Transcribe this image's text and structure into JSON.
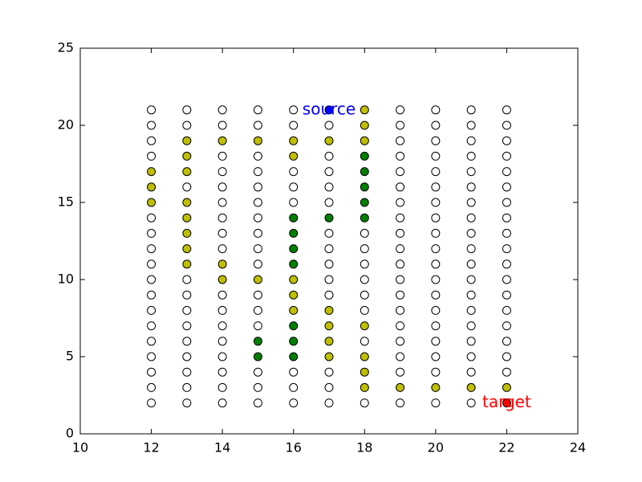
{
  "chart_data": {
    "type": "scatter",
    "xlim": [
      10,
      24
    ],
    "xticks": [
      10,
      12,
      14,
      16,
      18,
      20,
      22,
      24
    ],
    "ylim": [
      0,
      25
    ],
    "yticks": [
      0,
      5,
      10,
      15,
      20,
      25
    ],
    "series": [
      {
        "color": "#ffffff",
        "x": [
          12,
          13,
          14,
          15,
          16,
          19,
          20,
          21,
          22,
          12,
          13,
          14,
          15,
          16,
          17,
          19,
          20,
          21,
          22,
          12,
          19,
          20,
          21,
          22,
          12,
          14,
          15,
          17,
          19,
          20,
          21,
          22,
          14,
          15,
          16,
          17,
          19,
          20,
          21,
          22,
          13,
          14,
          15,
          16,
          17,
          19,
          20,
          21,
          22,
          14,
          15,
          16,
          17,
          19,
          20,
          21,
          22,
          12,
          14,
          15,
          19,
          20,
          21,
          22,
          12,
          14,
          15,
          17,
          18,
          19,
          20,
          21,
          22,
          12,
          14,
          15,
          17,
          18,
          19,
          20,
          21,
          22,
          12,
          15,
          17,
          18,
          19,
          20,
          21,
          22,
          12,
          13,
          17,
          18,
          19,
          20,
          21,
          22,
          12,
          13,
          14,
          15,
          17,
          18,
          19,
          20,
          21,
          22,
          12,
          13,
          14,
          15,
          18,
          19,
          20,
          21,
          22,
          12,
          13,
          14,
          15,
          19,
          20,
          21,
          22,
          12,
          13,
          14,
          18,
          19,
          20,
          21,
          22,
          12,
          13,
          14,
          19,
          20,
          21,
          22,
          12,
          13,
          14,
          15,
          16,
          17,
          19,
          20,
          21,
          22,
          12,
          13,
          14,
          15,
          16,
          17,
          12,
          13,
          14,
          15,
          16,
          17,
          18,
          19,
          20,
          21
        ],
        "y": [
          21,
          21,
          21,
          21,
          21,
          21,
          21,
          21,
          21,
          20,
          20,
          20,
          20,
          20,
          20,
          20,
          20,
          20,
          20,
          19,
          19,
          19,
          19,
          19,
          18,
          18,
          18,
          18,
          18,
          18,
          18,
          18,
          17,
          17,
          17,
          17,
          17,
          17,
          17,
          17,
          16,
          16,
          16,
          16,
          16,
          16,
          16,
          16,
          16,
          15,
          15,
          15,
          15,
          15,
          15,
          15,
          15,
          14,
          14,
          14,
          14,
          14,
          14,
          14,
          13,
          13,
          13,
          13,
          13,
          13,
          13,
          13,
          13,
          12,
          12,
          12,
          12,
          12,
          12,
          12,
          12,
          12,
          11,
          11,
          11,
          11,
          11,
          11,
          11,
          11,
          10,
          10,
          10,
          10,
          10,
          10,
          10,
          10,
          9,
          9,
          9,
          9,
          9,
          9,
          9,
          9,
          9,
          9,
          8,
          8,
          8,
          8,
          8,
          8,
          8,
          8,
          8,
          7,
          7,
          7,
          7,
          7,
          7,
          7,
          7,
          6,
          6,
          6,
          6,
          6,
          6,
          6,
          6,
          5,
          5,
          5,
          5,
          5,
          5,
          5,
          4,
          4,
          4,
          4,
          4,
          4,
          4,
          4,
          4,
          4,
          3,
          3,
          3,
          3,
          3,
          3,
          2,
          2,
          2,
          2,
          2,
          2,
          2,
          2,
          2,
          2
        ]
      },
      {
        "color": "#bfbf00",
        "x": [
          18,
          18,
          13,
          14,
          15,
          16,
          17,
          18,
          13,
          16,
          12,
          13,
          12,
          12,
          13,
          13,
          13,
          13,
          13,
          14,
          14,
          15,
          16,
          16,
          16,
          17,
          17,
          18,
          17,
          17,
          18,
          18,
          18,
          19,
          20,
          21,
          22
        ],
        "y": [
          21,
          20,
          19,
          19,
          19,
          19,
          19,
          19,
          18,
          18,
          17,
          17,
          16,
          15,
          15,
          14,
          13,
          12,
          11,
          11,
          10,
          10,
          10,
          9,
          8,
          8,
          7,
          7,
          6,
          5,
          5,
          4,
          3,
          3,
          3,
          3,
          3
        ]
      },
      {
        "color": "#008000",
        "x": [
          18,
          18,
          18,
          18,
          16,
          17,
          18,
          16,
          16,
          16,
          16,
          15,
          16,
          15,
          16
        ],
        "y": [
          18,
          17,
          16,
          15,
          14,
          14,
          14,
          13,
          12,
          11,
          7,
          6,
          6,
          5,
          5
        ]
      },
      {
        "color": "#0000ff",
        "x": [
          17
        ],
        "y": [
          21
        ]
      },
      {
        "color": "#ff0000",
        "x": [
          22
        ],
        "y": [
          2
        ]
      }
    ],
    "annotations": [
      {
        "text": "source",
        "x": 17,
        "y": 21,
        "color": "#0000ff"
      },
      {
        "text": "target",
        "x": 22,
        "y": 2,
        "color": "#ff0000"
      }
    ]
  }
}
